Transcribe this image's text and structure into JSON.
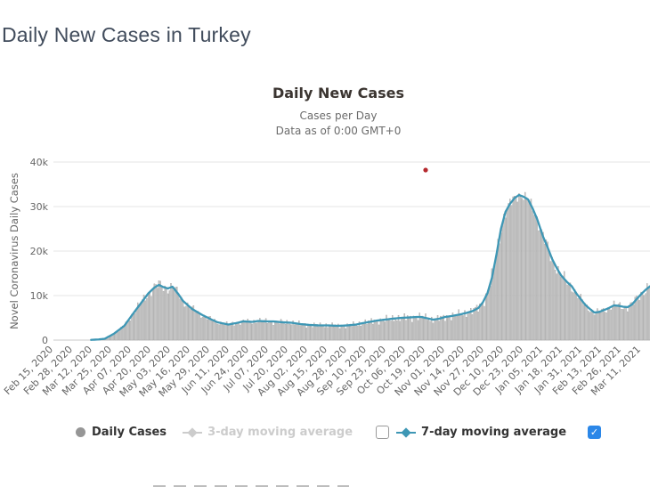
{
  "page": {
    "title": "Daily New Cases in Turkey"
  },
  "chart": {
    "title": "Daily New Cases",
    "subtitle_line1": "Cases per Day",
    "subtitle_line2": "Data as of 0:00 GMT+0",
    "y_axis_title": "Novel Coronavirus Daily Cases",
    "colors": {
      "page_title": "#414c5c",
      "chart_title": "#3b3531",
      "subtitle_text": "#6b6b6b",
      "axis_text": "#666666",
      "gridline": "#e6e6e6",
      "axis_line": "#c8c8c8",
      "bar_fill": "#c9c9c9",
      "bar_stroke": "#9d9d9d",
      "line_7day": "#3e97b5",
      "disabled_legend": "#cccccc",
      "daily_marker": "#969696",
      "legend_text": "#333333",
      "checkbox_blue": "#2b87e8",
      "outlier_red": "#b5282e",
      "cutoff_line": "#bdbdbd"
    }
  },
  "legend": {
    "daily_cases_label": "Daily Cases",
    "avg3_label": "3-day moving average",
    "avg7_label": "7-day moving average",
    "checkbox_3day_checked": false,
    "checkbox_7day_checked": true,
    "check_glyph": "✓"
  },
  "chart_data": {
    "type": "bar",
    "title": "Daily New Cases",
    "subtitle": "Cases per Day — Data as of 0:00 GMT+0",
    "ylabel": "Novel Coronavirus Daily Cases",
    "ylim": [
      0,
      40000
    ],
    "grid": true,
    "legend_position": "bottom",
    "x_day0_date": "Feb 15, 2020",
    "x_tick_interval_days": 13,
    "x_tick_labels": [
      "Feb 15, 2020",
      "Feb 28, 2020",
      "Mar 12, 2020",
      "Mar 25, 2020",
      "Apr 07, 2020",
      "Apr 20, 2020",
      "May 03, 2020",
      "May 16, 2020",
      "May 29, 2020",
      "Jun 11, 2020",
      "Jun 24, 2020",
      "Jul 07, 2020",
      "Jul 20, 2020",
      "Aug 02, 2020",
      "Aug 15, 2020",
      "Aug 28, 2020",
      "Sep 10, 2020",
      "Sep 23, 2020",
      "Oct 06, 2020",
      "Oct 19, 2020",
      "Nov 01, 2020",
      "Nov 14, 2020",
      "Nov 27, 2020",
      "Dec 10, 2020",
      "Dec 23, 2020",
      "Jan 05, 2021",
      "Jan 18, 2021",
      "Jan 31, 2021",
      "Feb 13, 2021",
      "Feb 26, 2021",
      "Mar 11, 2021"
    ],
    "y_ticks": [
      {
        "value": 0,
        "label": "0"
      },
      {
        "value": 10000,
        "label": "10k"
      },
      {
        "value": 20000,
        "label": "20k"
      },
      {
        "value": 30000,
        "label": "30k"
      },
      {
        "value": 40000,
        "label": "40k"
      }
    ],
    "series": [
      {
        "name": "Daily Cases",
        "type": "bar",
        "visible": true,
        "note": "daily bars fluctuate around the 7-day moving average envelope",
        "day_range": [
          28,
          396
        ],
        "relative_noise": 0.16
      },
      {
        "name": "3-day moving average",
        "type": "line",
        "visible": false
      },
      {
        "name": "7-day moving average",
        "type": "line",
        "visible": true,
        "points_day_cases": [
          [
            25,
            50
          ],
          [
            30,
            150
          ],
          [
            34,
            300
          ],
          [
            40,
            1400
          ],
          [
            47,
            3200
          ],
          [
            53,
            6000
          ],
          [
            59,
            8700
          ],
          [
            63,
            10500
          ],
          [
            67,
            11800
          ],
          [
            70,
            12400
          ],
          [
            73,
            11900
          ],
          [
            76,
            11600
          ],
          [
            79,
            12000
          ],
          [
            83,
            10300
          ],
          [
            86,
            8800
          ],
          [
            92,
            7000
          ],
          [
            99,
            5600
          ],
          [
            105,
            4600
          ],
          [
            109,
            4000
          ],
          [
            116,
            3500
          ],
          [
            121,
            3800
          ],
          [
            126,
            4200
          ],
          [
            132,
            4100
          ],
          [
            136,
            4300
          ],
          [
            141,
            4200
          ],
          [
            146,
            4200
          ],
          [
            152,
            4000
          ],
          [
            158,
            3900
          ],
          [
            164,
            3600
          ],
          [
            170,
            3400
          ],
          [
            176,
            3300
          ],
          [
            182,
            3300
          ],
          [
            189,
            3200
          ],
          [
            195,
            3300
          ],
          [
            201,
            3500
          ],
          [
            205,
            3800
          ],
          [
            210,
            4100
          ],
          [
            215,
            4400
          ],
          [
            220,
            4600
          ],
          [
            225,
            4800
          ],
          [
            231,
            5000
          ],
          [
            237,
            5100
          ],
          [
            241,
            5200
          ],
          [
            244,
            5200
          ],
          [
            248,
            4900
          ],
          [
            252,
            4600
          ],
          [
            256,
            4800
          ],
          [
            260,
            5200
          ],
          [
            264,
            5400
          ],
          [
            269,
            5700
          ],
          [
            274,
            6100
          ],
          [
            278,
            6500
          ],
          [
            282,
            7200
          ],
          [
            285,
            8500
          ],
          [
            288,
            10500
          ],
          [
            291,
            14000
          ],
          [
            294,
            19200
          ],
          [
            297,
            25000
          ],
          [
            300,
            28800
          ],
          [
            303,
            30600
          ],
          [
            306,
            31900
          ],
          [
            309,
            32600
          ],
          [
            312,
            32200
          ],
          [
            315,
            31600
          ],
          [
            318,
            29600
          ],
          [
            321,
            27200
          ],
          [
            325,
            23200
          ],
          [
            328,
            20800
          ],
          [
            331,
            18200
          ],
          [
            334,
            16200
          ],
          [
            337,
            14500
          ],
          [
            341,
            13000
          ],
          [
            344,
            12100
          ],
          [
            347,
            10500
          ],
          [
            350,
            9200
          ],
          [
            353,
            7900
          ],
          [
            356,
            7000
          ],
          [
            359,
            6200
          ],
          [
            362,
            6300
          ],
          [
            365,
            6700
          ],
          [
            368,
            7100
          ],
          [
            372,
            7800
          ],
          [
            375,
            7700
          ],
          [
            378,
            7500
          ],
          [
            381,
            7400
          ],
          [
            384,
            8000
          ],
          [
            387,
            9200
          ],
          [
            390,
            10300
          ],
          [
            393,
            11300
          ],
          [
            396,
            12100
          ]
        ]
      }
    ],
    "outlier_point": {
      "day": 247,
      "approx_date": "Oct 19, 2020",
      "value": 38200
    }
  }
}
